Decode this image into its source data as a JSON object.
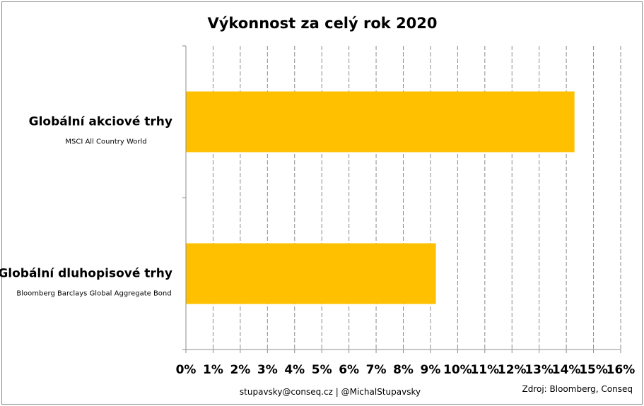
{
  "chart_data": {
    "type": "bar",
    "orientation": "horizontal",
    "title": "Výkonnost za celý rok 2020",
    "categories": [
      {
        "label": "Globální akciové trhy",
        "sublabel": "MSCI All Country World"
      },
      {
        "label": "Globální dluhopisové trhy",
        "sublabel": "Bloomberg Barclays Global Aggregate Bond"
      }
    ],
    "values": [
      14.3,
      9.2
    ],
    "xlim": [
      0,
      16
    ],
    "x_ticks": [
      "0%",
      "1%",
      "2%",
      "3%",
      "4%",
      "5%",
      "6%",
      "7%",
      "8%",
      "9%",
      "10%",
      "11%",
      "12%",
      "13%",
      "14%",
      "15%",
      "16%"
    ],
    "grid": "vertical dashed",
    "bar_color": "#FFC000",
    "legend": "none"
  },
  "footer": {
    "contact": "stupavsky@conseq.cz  |  @MichalStupavsky",
    "source": "Zdroj: Bloomberg, Conseq"
  }
}
